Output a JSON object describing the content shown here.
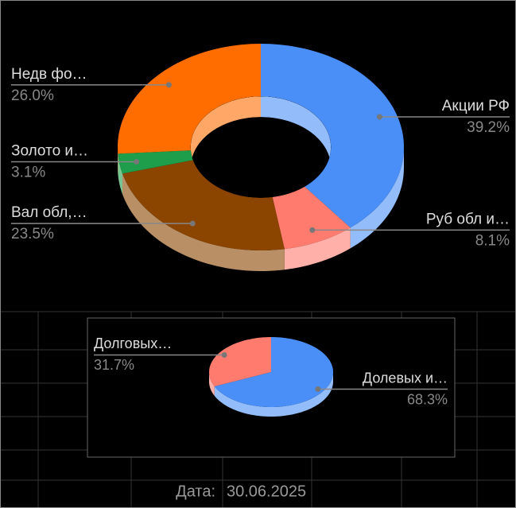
{
  "chart_data": [
    {
      "type": "pie3d-donut",
      "categories": [
        "Акции РФ",
        "Руб обл и…",
        "Вал обл,…",
        "Золото и…",
        "Недв фо…"
      ],
      "values": [
        39.2,
        8.1,
        23.5,
        3.1,
        26.0
      ],
      "value_labels": [
        "39.2%",
        "8.1%",
        "23.5%",
        "3.1%",
        "26.0%"
      ],
      "colors": [
        "#4a8ff7",
        "#ff7b6e",
        "#8b4500",
        "#1e9e4a",
        "#ff6d00"
      ]
    },
    {
      "type": "pie3d",
      "categories": [
        "Долевых и…",
        "Долговых…"
      ],
      "values": [
        68.3,
        31.7
      ],
      "value_labels": [
        "68.3%",
        "31.7%"
      ],
      "colors": [
        "#4a8ff7",
        "#ff7b6e"
      ]
    }
  ],
  "footer": {
    "label": "Дата:",
    "date": "30.06.2025"
  }
}
